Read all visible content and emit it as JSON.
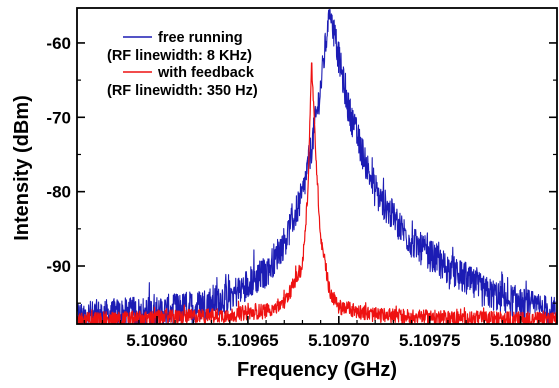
{
  "chart_data": {
    "type": "line",
    "xlabel": "Frequency (GHz)",
    "ylabel": "Intensity (dBm)",
    "xlim": [
      5.109556,
      5.10982
    ],
    "ylim": [
      -97.8,
      -55.3
    ],
    "x_ticks": [
      5.1096,
      5.10965,
      5.1097,
      5.10975,
      5.1098
    ],
    "x_tick_labels": [
      "5.10960",
      "5.10965",
      "5.10970",
      "5.10975",
      "5.10980"
    ],
    "y_ticks": [
      -60,
      -70,
      -80,
      -90
    ],
    "y_tick_labels": [
      "-60",
      "-70",
      "-80",
      "-90"
    ],
    "grid": false,
    "legend_position": "top-left",
    "series": [
      {
        "name": "free running",
        "annotation": "(RF linewidth: 8 KHz)",
        "color": "#1c1cb4",
        "peak_x": 5.109695,
        "peak_y": -55.5,
        "noise_floor": -96.6,
        "x": [
          5.10956,
          5.1096,
          5.10962,
          5.10964,
          5.10966,
          5.10967,
          5.10968,
          5.109685,
          5.10969,
          5.109695,
          5.1097,
          5.109705,
          5.10971,
          5.10972,
          5.10974,
          5.10976,
          5.10978,
          5.10982
        ],
        "y": [
          -96.8,
          -96.2,
          -95.5,
          -94.0,
          -90.8,
          -86.8,
          -80.5,
          -74.0,
          -66.0,
          -55.5,
          -62.0,
          -68.5,
          -72.5,
          -80.0,
          -86.8,
          -90.3,
          -93.5,
          -96.5
        ]
      },
      {
        "name": "with feedback",
        "annotation": "(RF linewidth: 350 Hz)",
        "color": "#ee1111",
        "peak_x": 5.109685,
        "peak_y": -62.7,
        "noise_floor": -97.0,
        "x": [
          5.10956,
          5.1096,
          5.10964,
          5.10966,
          5.10967,
          5.10968,
          5.109683,
          5.109685,
          5.109688,
          5.10969,
          5.109695,
          5.1097,
          5.10972,
          5.10976,
          5.10982
        ],
        "y": [
          -97.2,
          -97.0,
          -96.6,
          -96.0,
          -95.0,
          -90.0,
          -80.0,
          -62.7,
          -78.0,
          -86.0,
          -93.5,
          -95.5,
          -96.6,
          -97.0,
          -97.2
        ]
      }
    ]
  }
}
